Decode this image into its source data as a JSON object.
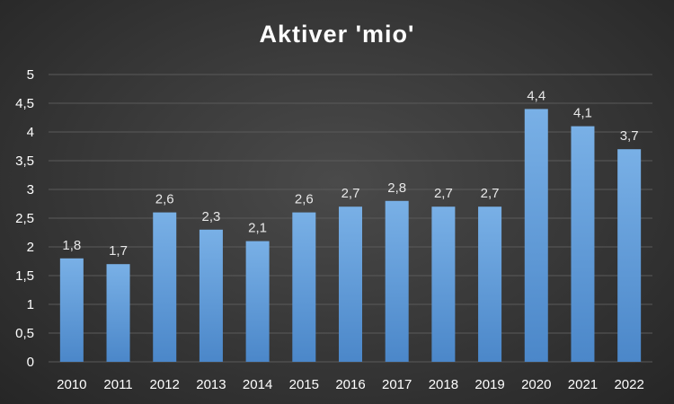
{
  "chart_data": {
    "type": "bar",
    "title": "Aktiver 'mio'",
    "xlabel": "",
    "ylabel": "",
    "categories": [
      "2010",
      "2011",
      "2012",
      "2013",
      "2014",
      "2015",
      "2016",
      "2017",
      "2018",
      "2019",
      "2020",
      "2021",
      "2022"
    ],
    "values": [
      1.8,
      1.7,
      2.6,
      2.3,
      2.1,
      2.6,
      2.7,
      2.8,
      2.7,
      2.7,
      4.4,
      4.1,
      3.7
    ],
    "value_labels": [
      "1,8",
      "1,7",
      "2,6",
      "2,3",
      "2,1",
      "2,6",
      "2,7",
      "2,8",
      "2,7",
      "2,7",
      "4,4",
      "4,1",
      "3,7"
    ],
    "ylim": [
      0,
      5
    ],
    "yticks": [
      0,
      0.5,
      1,
      1.5,
      2,
      2.5,
      3,
      3.5,
      4,
      4.5,
      5
    ],
    "ytick_labels": [
      "0",
      "0,5",
      "1",
      "1,5",
      "2",
      "2,5",
      "3",
      "3,5",
      "4",
      "4,5",
      "5"
    ],
    "grid": true,
    "legend": "none",
    "colors": {
      "bar_top": "#79b0e6",
      "bar_bottom": "#4b87c9",
      "gridline": "#5a5a5a",
      "text": "#ffffff"
    }
  }
}
